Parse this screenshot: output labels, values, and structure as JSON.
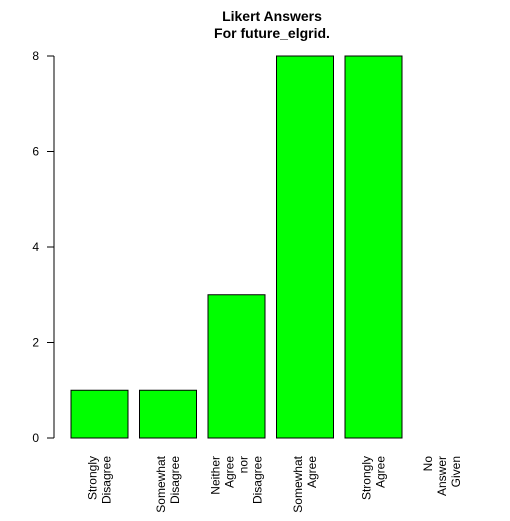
{
  "chart_data": {
    "type": "bar",
    "title": [
      "Likert Answers",
      "For future_elgrid."
    ],
    "xlabel": "",
    "ylabel": "",
    "categories": [
      [
        "Strongly",
        "Disagree"
      ],
      [
        "Somewhat",
        "Disagree"
      ],
      [
        "Neither",
        "Agree",
        "nor",
        "Disagree"
      ],
      [
        "Somewhat",
        "Agree"
      ],
      [
        "Strongly",
        "Agree"
      ],
      [
        "No",
        "Answer",
        "Given"
      ]
    ],
    "values": [
      1,
      1,
      3,
      8,
      8,
      0
    ],
    "ylim": [
      0,
      8
    ],
    "yticks": [
      0,
      2,
      4,
      6,
      8
    ],
    "bar_color": "#00ff00",
    "bar_edge_color": "#000000",
    "grid": false,
    "legend": "none"
  }
}
